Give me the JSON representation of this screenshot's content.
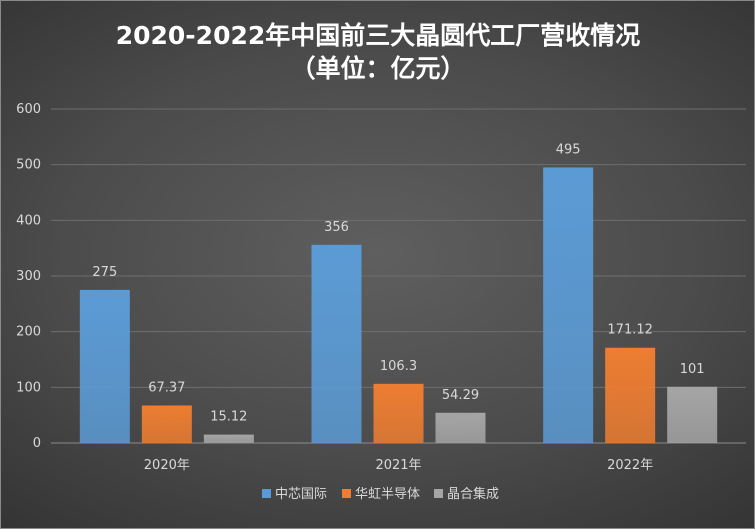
{
  "chart_data": {
    "type": "bar",
    "title_line1": "2020-2022年中国前三大晶圆代工厂营收情况",
    "title_line2": "（单位：亿元）",
    "categories": [
      "2020年",
      "2021年",
      "2022年"
    ],
    "series": [
      {
        "name": "中芯国际",
        "values": [
          275,
          356,
          495
        ],
        "labels": [
          "275",
          "356",
          "495"
        ],
        "color": "#5b9bd5"
      },
      {
        "name": "华虹半导体",
        "values": [
          67.37,
          106.3,
          171.12
        ],
        "labels": [
          "67.37",
          "106.3",
          "171.12"
        ],
        "color": "#ed7d31"
      },
      {
        "name": "晶合集成",
        "values": [
          15.12,
          54.29,
          101
        ],
        "labels": [
          "15.12",
          "54.29",
          "101"
        ],
        "color": "#a5a5a5"
      }
    ],
    "ylim": [
      0,
      600
    ],
    "yticks": [
      "0",
      "100",
      "200",
      "300",
      "400",
      "500",
      "600"
    ],
    "grid": true,
    "legend_position": "bottom"
  }
}
